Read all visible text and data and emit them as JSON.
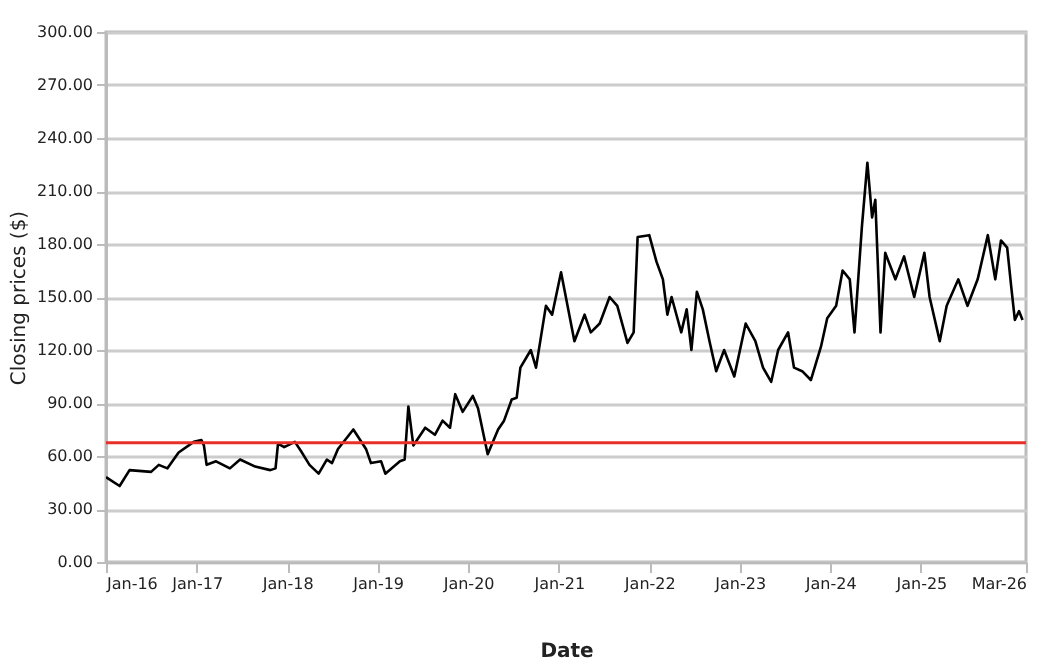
{
  "chart_data": {
    "type": "line",
    "xlabel": "Date",
    "ylabel": "Closing prices ($)",
    "x": [
      "2016-01-01",
      "2016-02-25",
      "2016-04-05",
      "2016-07-01",
      "2016-08-01",
      "2016-09-05",
      "2016-10-20",
      "2016-12-20",
      "2017-01-20",
      "2017-01-30",
      "2017-02-10",
      "2017-03-20",
      "2017-05-15",
      "2017-06-25",
      "2017-08-25",
      "2017-10-25",
      "2017-11-15",
      "2017-11-25",
      "2017-12-20",
      "2018-02-01",
      "2018-02-25",
      "2018-04-01",
      "2018-05-08",
      "2018-06-10",
      "2018-07-01",
      "2018-07-25",
      "2018-09-25",
      "2018-11-15",
      "2018-12-05",
      "2019-01-15",
      "2019-02-01",
      "2019-04-01",
      "2019-04-20",
      "2019-05-05",
      "2019-05-25",
      "2019-07-12",
      "2019-08-20",
      "2019-09-20",
      "2019-10-20",
      "2019-11-10",
      "2019-12-10",
      "2020-01-20",
      "2020-02-10",
      "2020-03-20",
      "2020-05-01",
      "2020-05-25",
      "2020-06-25",
      "2020-07-15",
      "2020-07-30",
      "2020-09-10",
      "2020-10-01",
      "2020-11-10",
      "2020-12-05",
      "2021-01-10",
      "2021-03-05",
      "2021-04-15",
      "2021-05-10",
      "2021-06-15",
      "2021-07-25",
      "2021-08-25",
      "2021-10-05",
      "2021-10-30",
      "2021-11-15",
      "2022-01-01",
      "2022-01-30",
      "2022-02-25",
      "2022-03-15",
      "2022-04-01",
      "2022-05-10",
      "2022-06-01",
      "2022-06-20",
      "2022-07-12",
      "2022-08-05",
      "2022-09-01",
      "2022-09-28",
      "2022-10-30",
      "2022-12-10",
      "2023-01-25",
      "2023-03-05",
      "2023-04-05",
      "2023-05-08",
      "2023-06-05",
      "2023-07-15",
      "2023-08-08",
      "2023-09-10",
      "2023-10-15",
      "2023-11-25",
      "2023-12-20",
      "2024-01-25",
      "2024-02-20",
      "2024-03-20",
      "2024-04-08",
      "2024-05-08",
      "2024-05-30",
      "2024-06-18",
      "2024-07-01",
      "2024-07-22",
      "2024-08-10",
      "2024-09-20",
      "2024-10-25",
      "2024-12-05",
      "2025-01-15",
      "2025-02-05",
      "2025-03-18",
      "2025-04-15",
      "2025-06-01",
      "2025-07-08",
      "2025-08-18",
      "2025-09-28",
      "2025-10-28",
      "2025-11-20",
      "2025-12-15",
      "2026-01-01",
      "2026-01-15",
      "2026-02-01",
      "2026-02-15"
    ],
    "series": [
      {
        "color": "#000000",
        "values": [
          48,
          43,
          52,
          51,
          55,
          53,
          62,
          68,
          69,
          66,
          55,
          57,
          53,
          58,
          54,
          52,
          53,
          67,
          65,
          68,
          63,
          55,
          50,
          58,
          56,
          64,
          75,
          64,
          56,
          57,
          50,
          57,
          58,
          88,
          66,
          76,
          72,
          80,
          76,
          95,
          85,
          94,
          87,
          61,
          75,
          80,
          92,
          93,
          110,
          120,
          110,
          145,
          140,
          164,
          125,
          140,
          130,
          135,
          150,
          145,
          124,
          130,
          184,
          185,
          170,
          160,
          140,
          150,
          130,
          143,
          120,
          153,
          143,
          125,
          108,
          120,
          105,
          135,
          125,
          110,
          102,
          120,
          130,
          110,
          108,
          103,
          122,
          138,
          145,
          165,
          160,
          130,
          190,
          226,
          195,
          205,
          130,
          175,
          160,
          173,
          150,
          175,
          150,
          125,
          145,
          160,
          145,
          160,
          185,
          160,
          182,
          178,
          155,
          137,
          142,
          137
        ]
      }
    ],
    "xlim": [
      "2016-01-01",
      "2026-03-01"
    ],
    "xticks": [
      {
        "value": "2016-01",
        "label": "Jan-16"
      },
      {
        "value": "2017-01",
        "label": "Jan-17"
      },
      {
        "value": "2018-01",
        "label": "Jan-18"
      },
      {
        "value": "2019-01",
        "label": "Jan-19"
      },
      {
        "value": "2020-01",
        "label": "Jan-20"
      },
      {
        "value": "2021-01",
        "label": "Jan-21"
      },
      {
        "value": "2022-01",
        "label": "Jan-22"
      },
      {
        "value": "2023-01",
        "label": "Jan-23"
      },
      {
        "value": "2024-01",
        "label": "Jan-24"
      },
      {
        "value": "2025-01",
        "label": "Jan-25"
      },
      {
        "value": "2026-03",
        "label": "Mar-26"
      }
    ],
    "ylim": [
      0,
      300
    ],
    "yticks": [
      {
        "value": 0,
        "label": "0.00"
      },
      {
        "value": 30,
        "label": "30.00"
      },
      {
        "value": 60,
        "label": "60.00"
      },
      {
        "value": 90,
        "label": "90.00"
      },
      {
        "value": 120,
        "label": "120.00"
      },
      {
        "value": 150,
        "label": "150.00"
      },
      {
        "value": 180,
        "label": "180.00"
      },
      {
        "value": 210,
        "label": "210.00"
      },
      {
        "value": 240,
        "label": "240.00"
      },
      {
        "value": 270,
        "label": "270.00"
      },
      {
        "value": 300,
        "label": "300.00"
      }
    ],
    "ref_lines": [
      {
        "axis": "y",
        "value": 67.5,
        "color": "#e8302a"
      }
    ],
    "grid": "y",
    "line_style": "solid"
  }
}
